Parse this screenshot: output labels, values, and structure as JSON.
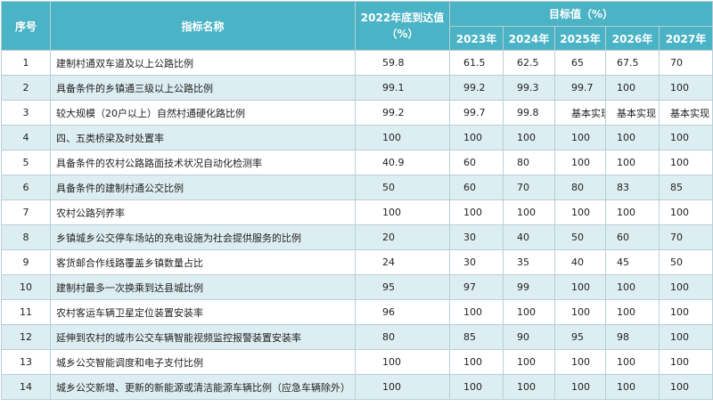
{
  "headers": {
    "no": "序号",
    "name": "指标名称",
    "base_line1": "2022年底到达值",
    "base_line2": "（%）",
    "target_group": "目标值（%）",
    "years": [
      "2023年",
      "2024年",
      "2025年",
      "2026年",
      "2027年"
    ]
  },
  "rows": [
    {
      "no": "1",
      "name": "建制村通双车道及以上公路比例",
      "base": "59.8",
      "targets": [
        "61.5",
        "62.5",
        "65",
        "67.5",
        "70"
      ]
    },
    {
      "no": "2",
      "name": "具备条件的乡镇通三级以上公路比例",
      "base": "99.1",
      "targets": [
        "99.2",
        "99.3",
        "99.7",
        "100",
        "100"
      ]
    },
    {
      "no": "3",
      "name": "较大规模（20户以上）自然村通硬化路比例",
      "base": "99.2",
      "targets": [
        "99.7",
        "99.8",
        "基本实现",
        "基本实现",
        "基本实现"
      ]
    },
    {
      "no": "4",
      "name": "四、五类桥梁及时处置率",
      "base": "100",
      "targets": [
        "100",
        "100",
        "100",
        "100",
        "100"
      ]
    },
    {
      "no": "5",
      "name": "具备条件的农村公路路面技术状况自动化检测率",
      "base": "40.9",
      "targets": [
        "60",
        "80",
        "100",
        "100",
        "100"
      ]
    },
    {
      "no": "6",
      "name": "具备条件的建制村通公交比例",
      "base": "50",
      "targets": [
        "60",
        "70",
        "80",
        "83",
        "85"
      ]
    },
    {
      "no": "7",
      "name": "农村公路列养率",
      "base": "100",
      "targets": [
        "100",
        "100",
        "100",
        "100",
        "100"
      ]
    },
    {
      "no": "8",
      "name": "乡镇城乡公交停车场站的充电设施为社会提供服务的比例",
      "base": "20",
      "targets": [
        "30",
        "40",
        "50",
        "60",
        "70"
      ]
    },
    {
      "no": "9",
      "name": "客货邮合作线路覆盖乡镇数量占比",
      "base": "24",
      "targets": [
        "30",
        "35",
        "40",
        "45",
        "50"
      ]
    },
    {
      "no": "10",
      "name": "建制村最多一次换乘到达县城比例",
      "base": "95",
      "targets": [
        "97",
        "99",
        "100",
        "100",
        "100"
      ]
    },
    {
      "no": "11",
      "name": "农村客运车辆卫星定位装置安装率",
      "base": "96",
      "targets": [
        "100",
        "100",
        "100",
        "100",
        "100"
      ]
    },
    {
      "no": "12",
      "name": "延伸到农村的城市公交车辆智能视频监控报警装置安装率",
      "base": "80",
      "targets": [
        "85",
        "90",
        "95",
        "98",
        "100"
      ]
    },
    {
      "no": "13",
      "name": "城乡公交智能调度和电子支付比例",
      "base": "100",
      "targets": [
        "100",
        "100",
        "100",
        "100",
        "100"
      ]
    },
    {
      "no": "14",
      "name": "城乡公交新增、更新的新能源或清洁能源车辆比例（应急车辆除外）",
      "base": "100",
      "targets": [
        "100",
        "100",
        "100",
        "100",
        "100"
      ]
    }
  ]
}
